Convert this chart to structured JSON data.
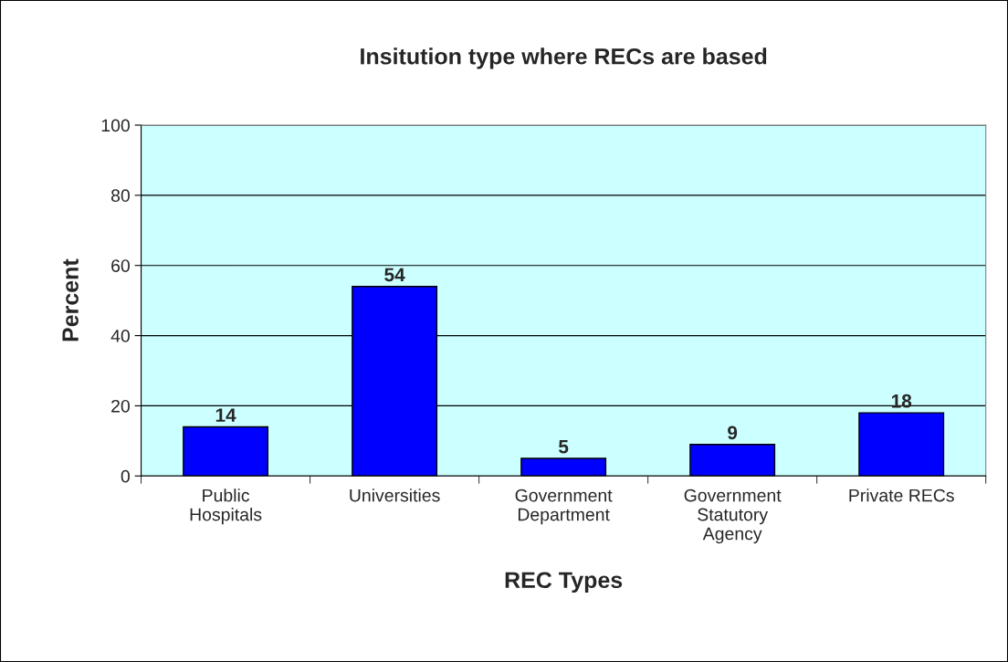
{
  "chart_data": {
    "type": "bar",
    "title": "Insitution type where RECs are based",
    "xlabel": "REC Types",
    "ylabel": "Percent",
    "categories": [
      "Public\nHospitals",
      "Universities",
      "Government\nDepartment",
      "Government\nStatutory\nAgency",
      "Private RECs"
    ],
    "values": [
      14,
      54,
      5,
      9,
      18
    ],
    "color": "#0000ff",
    "ylim": [
      0,
      100
    ],
    "yticks": [
      0,
      20,
      40,
      60,
      80,
      100
    ],
    "grid": "y",
    "data_labels": true
  }
}
